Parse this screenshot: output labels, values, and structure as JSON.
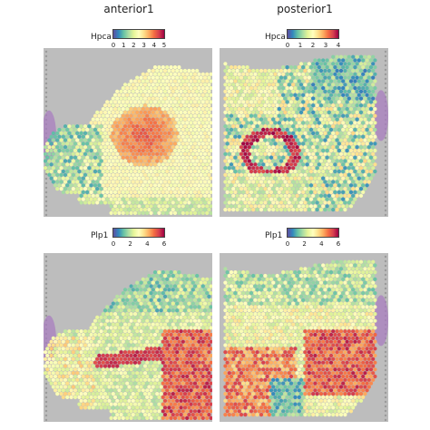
{
  "chart_data": [
    {
      "type": "heatmap",
      "title": "anterior1",
      "legend_label": "Hpca",
      "colorbar_ticks": [
        "0",
        "1",
        "2",
        "3",
        "4",
        "5"
      ],
      "range": [
        0,
        5
      ],
      "colormap": [
        "#5e4fa2",
        "#3288bd",
        "#66c2a5",
        "#abdda4",
        "#e6f598",
        "#ffffbf",
        "#fee08b",
        "#fdae61",
        "#f46d43",
        "#d53e4f",
        "#9e0142"
      ]
    },
    {
      "type": "heatmap",
      "title": "posterior1",
      "legend_label": "Hpca",
      "colorbar_ticks": [
        "0",
        "1",
        "2",
        "3",
        "4"
      ],
      "range": [
        0,
        4
      ],
      "colormap": [
        "#5e4fa2",
        "#3288bd",
        "#66c2a5",
        "#abdda4",
        "#e6f598",
        "#ffffbf",
        "#fee08b",
        "#fdae61",
        "#f46d43",
        "#d53e4f",
        "#9e0142"
      ]
    },
    {
      "type": "heatmap",
      "title": "",
      "legend_label": "Plp1",
      "colorbar_ticks": [
        "0",
        "2",
        "4",
        "6"
      ],
      "range": [
        0,
        6
      ],
      "colormap": [
        "#5e4fa2",
        "#3288bd",
        "#66c2a5",
        "#abdda4",
        "#e6f598",
        "#ffffbf",
        "#fee08b",
        "#fdae61",
        "#f46d43",
        "#d53e4f",
        "#9e0142"
      ]
    },
    {
      "type": "heatmap",
      "title": "",
      "legend_label": "Plp1",
      "colorbar_ticks": [
        "0",
        "2",
        "4",
        "6"
      ],
      "range": [
        0,
        6
      ],
      "colormap": [
        "#5e4fa2",
        "#3288bd",
        "#66c2a5",
        "#abdda4",
        "#e6f598",
        "#ffffbf",
        "#fee08b",
        "#fdae61",
        "#f46d43",
        "#d53e4f",
        "#9e0142"
      ]
    }
  ],
  "panel_background": "#bdbdbd",
  "tissue_outline_color": "#a87bc0"
}
